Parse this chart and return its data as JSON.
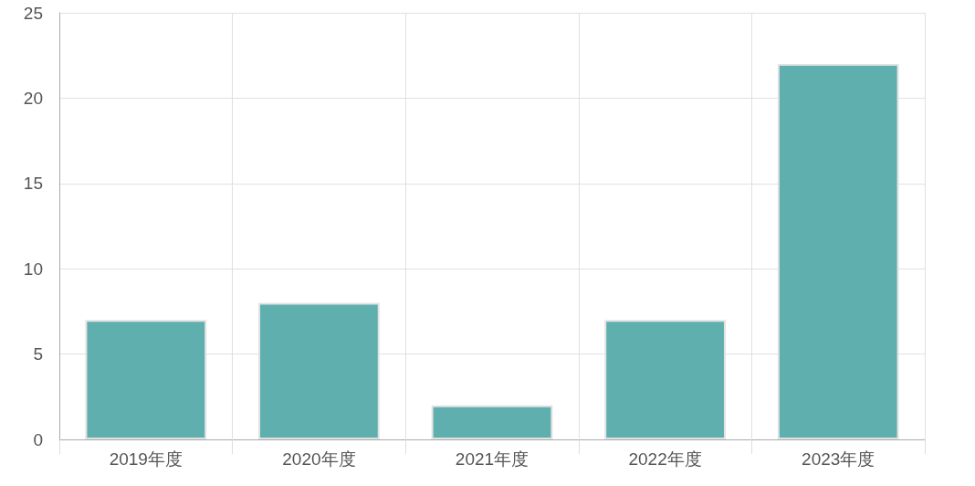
{
  "chart_data": {
    "type": "bar",
    "categories": [
      "2019年度",
      "2020年度",
      "2021年度",
      "2022年度",
      "2023年度"
    ],
    "values": [
      7,
      8,
      2,
      7,
      22
    ],
    "color": "#5fafaf",
    "ylim": [
      0,
      25
    ],
    "yticks": [
      0,
      5,
      10,
      15,
      20,
      25
    ],
    "grid": true
  }
}
